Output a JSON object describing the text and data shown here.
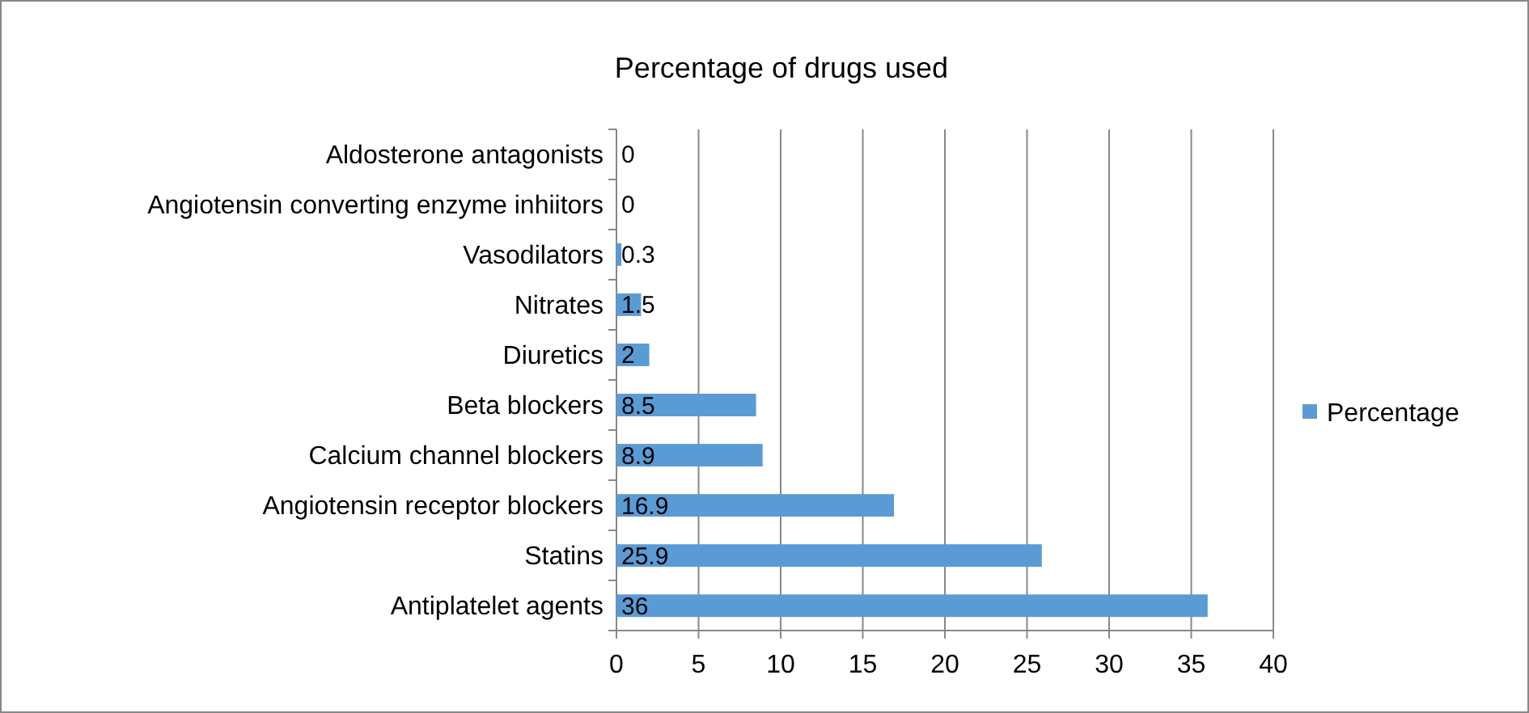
{
  "chart_data": {
    "type": "bar",
    "orientation": "horizontal",
    "title": "Percentage of drugs used",
    "categories": [
      "Aldosterone antagonists",
      "Angiotensin converting enzyme inhiitors",
      "Vasodilators",
      "Nitrates",
      "Diuretics",
      "Beta blockers",
      "Calcium channel blockers",
      "Angiotensin receptor blockers",
      "Statins",
      "Antiplatelet agents"
    ],
    "series": [
      {
        "name": "Percentage",
        "color": "#5b9bd5",
        "values": [
          0,
          0,
          0.3,
          1.5,
          2,
          8.5,
          8.9,
          16.9,
          25.9,
          36
        ]
      }
    ],
    "xlim": [
      0,
      40
    ],
    "xticks": [
      0,
      5,
      10,
      15,
      20,
      25,
      30,
      35,
      40
    ],
    "grid": "x",
    "legend": "right",
    "data_labels": true
  }
}
